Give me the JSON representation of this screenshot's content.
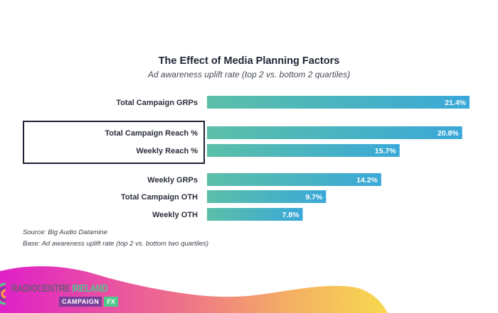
{
  "chart_data": {
    "type": "bar",
    "orientation": "horizontal",
    "title": "The Effect of Media Planning Factors",
    "subtitle": "Ad awareness uplift rate (top 2 vs. bottom 2 quartiles)",
    "xlabel": "",
    "ylabel": "",
    "unit": "%",
    "xlim": [
      0,
      21.4
    ],
    "grid": false,
    "legend": "none",
    "categories": [
      "Total Campaign GRPs",
      "Total Campaign Reach %",
      "Weekly Reach %",
      "Weekly GRPs",
      "Total Campaign OTH",
      "Weekly OTH"
    ],
    "values": [
      21.4,
      20.8,
      15.7,
      14.2,
      9.7,
      7.8
    ],
    "value_labels": [
      "21.4%",
      "20.8%",
      "15.7%",
      "14.2%",
      "9.7%",
      "7.8%"
    ],
    "groups": [
      [
        0
      ],
      [
        1,
        2
      ],
      [
        3,
        4,
        5
      ]
    ],
    "highlighted_categories": [
      "Total Campaign Reach %",
      "Weekly Reach %"
    ],
    "bar_gradient": [
      "#5bbfa8",
      "#3aa8d8"
    ]
  },
  "footnotes": {
    "source": "Source: Big Audio Datamine",
    "base": "Base: Ad awareness uplift rate (top 2 vs. bottom two quartiles)"
  },
  "branding": {
    "name_part1": "RADIOCENTRE",
    "name_part2": "IRELAND",
    "tag_part1": "CAMPAIGN",
    "tag_part2": "FX",
    "colors": {
      "magenta": "#e020c8",
      "pink": "#ee6e8c",
      "yellow": "#f7d24f",
      "green": "#4fc98a",
      "purple": "#7b3f9a"
    }
  }
}
